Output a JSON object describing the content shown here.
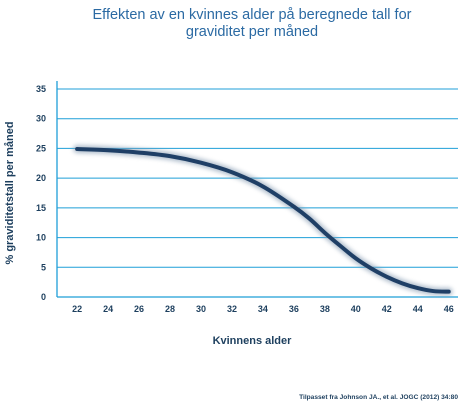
{
  "chart_data": {
    "type": "line",
    "title": "Effekten av en kvinnes alder på beregnede tall for graviditet per måned",
    "title_lines": [
      "Effekten av en kvinnes alder på beregnede tall for",
      "graviditet per måned"
    ],
    "xlabel": "Kvinnens alder",
    "ylabel": "% graviditetstall per måned",
    "source": "Tilpasset fra Johnson JA., et al. JOGC (2012) 34:80",
    "x_ticks": [
      22,
      24,
      26,
      28,
      30,
      32,
      34,
      36,
      38,
      40,
      42,
      44,
      46
    ],
    "y_ticks": [
      0,
      5,
      10,
      15,
      20,
      25,
      30,
      35
    ],
    "xlim": [
      20.7,
      46.6
    ],
    "ylim": [
      0,
      35
    ],
    "grid": "horizontal",
    "line_color": "#1f3f66",
    "grid_color": "#1f9fd8",
    "title_color": "#2b6aa3",
    "series": [
      {
        "x": [
          22,
          24,
          26,
          28,
          30,
          32,
          34,
          36,
          37,
          38,
          39,
          40,
          41,
          42,
          43,
          44,
          45,
          46
        ],
        "y": [
          24.9,
          24.7,
          24.3,
          23.7,
          22.6,
          21.0,
          18.6,
          15.2,
          13.2,
          10.8,
          8.6,
          6.5,
          4.8,
          3.4,
          2.3,
          1.5,
          1.0,
          0.9
        ]
      }
    ]
  }
}
